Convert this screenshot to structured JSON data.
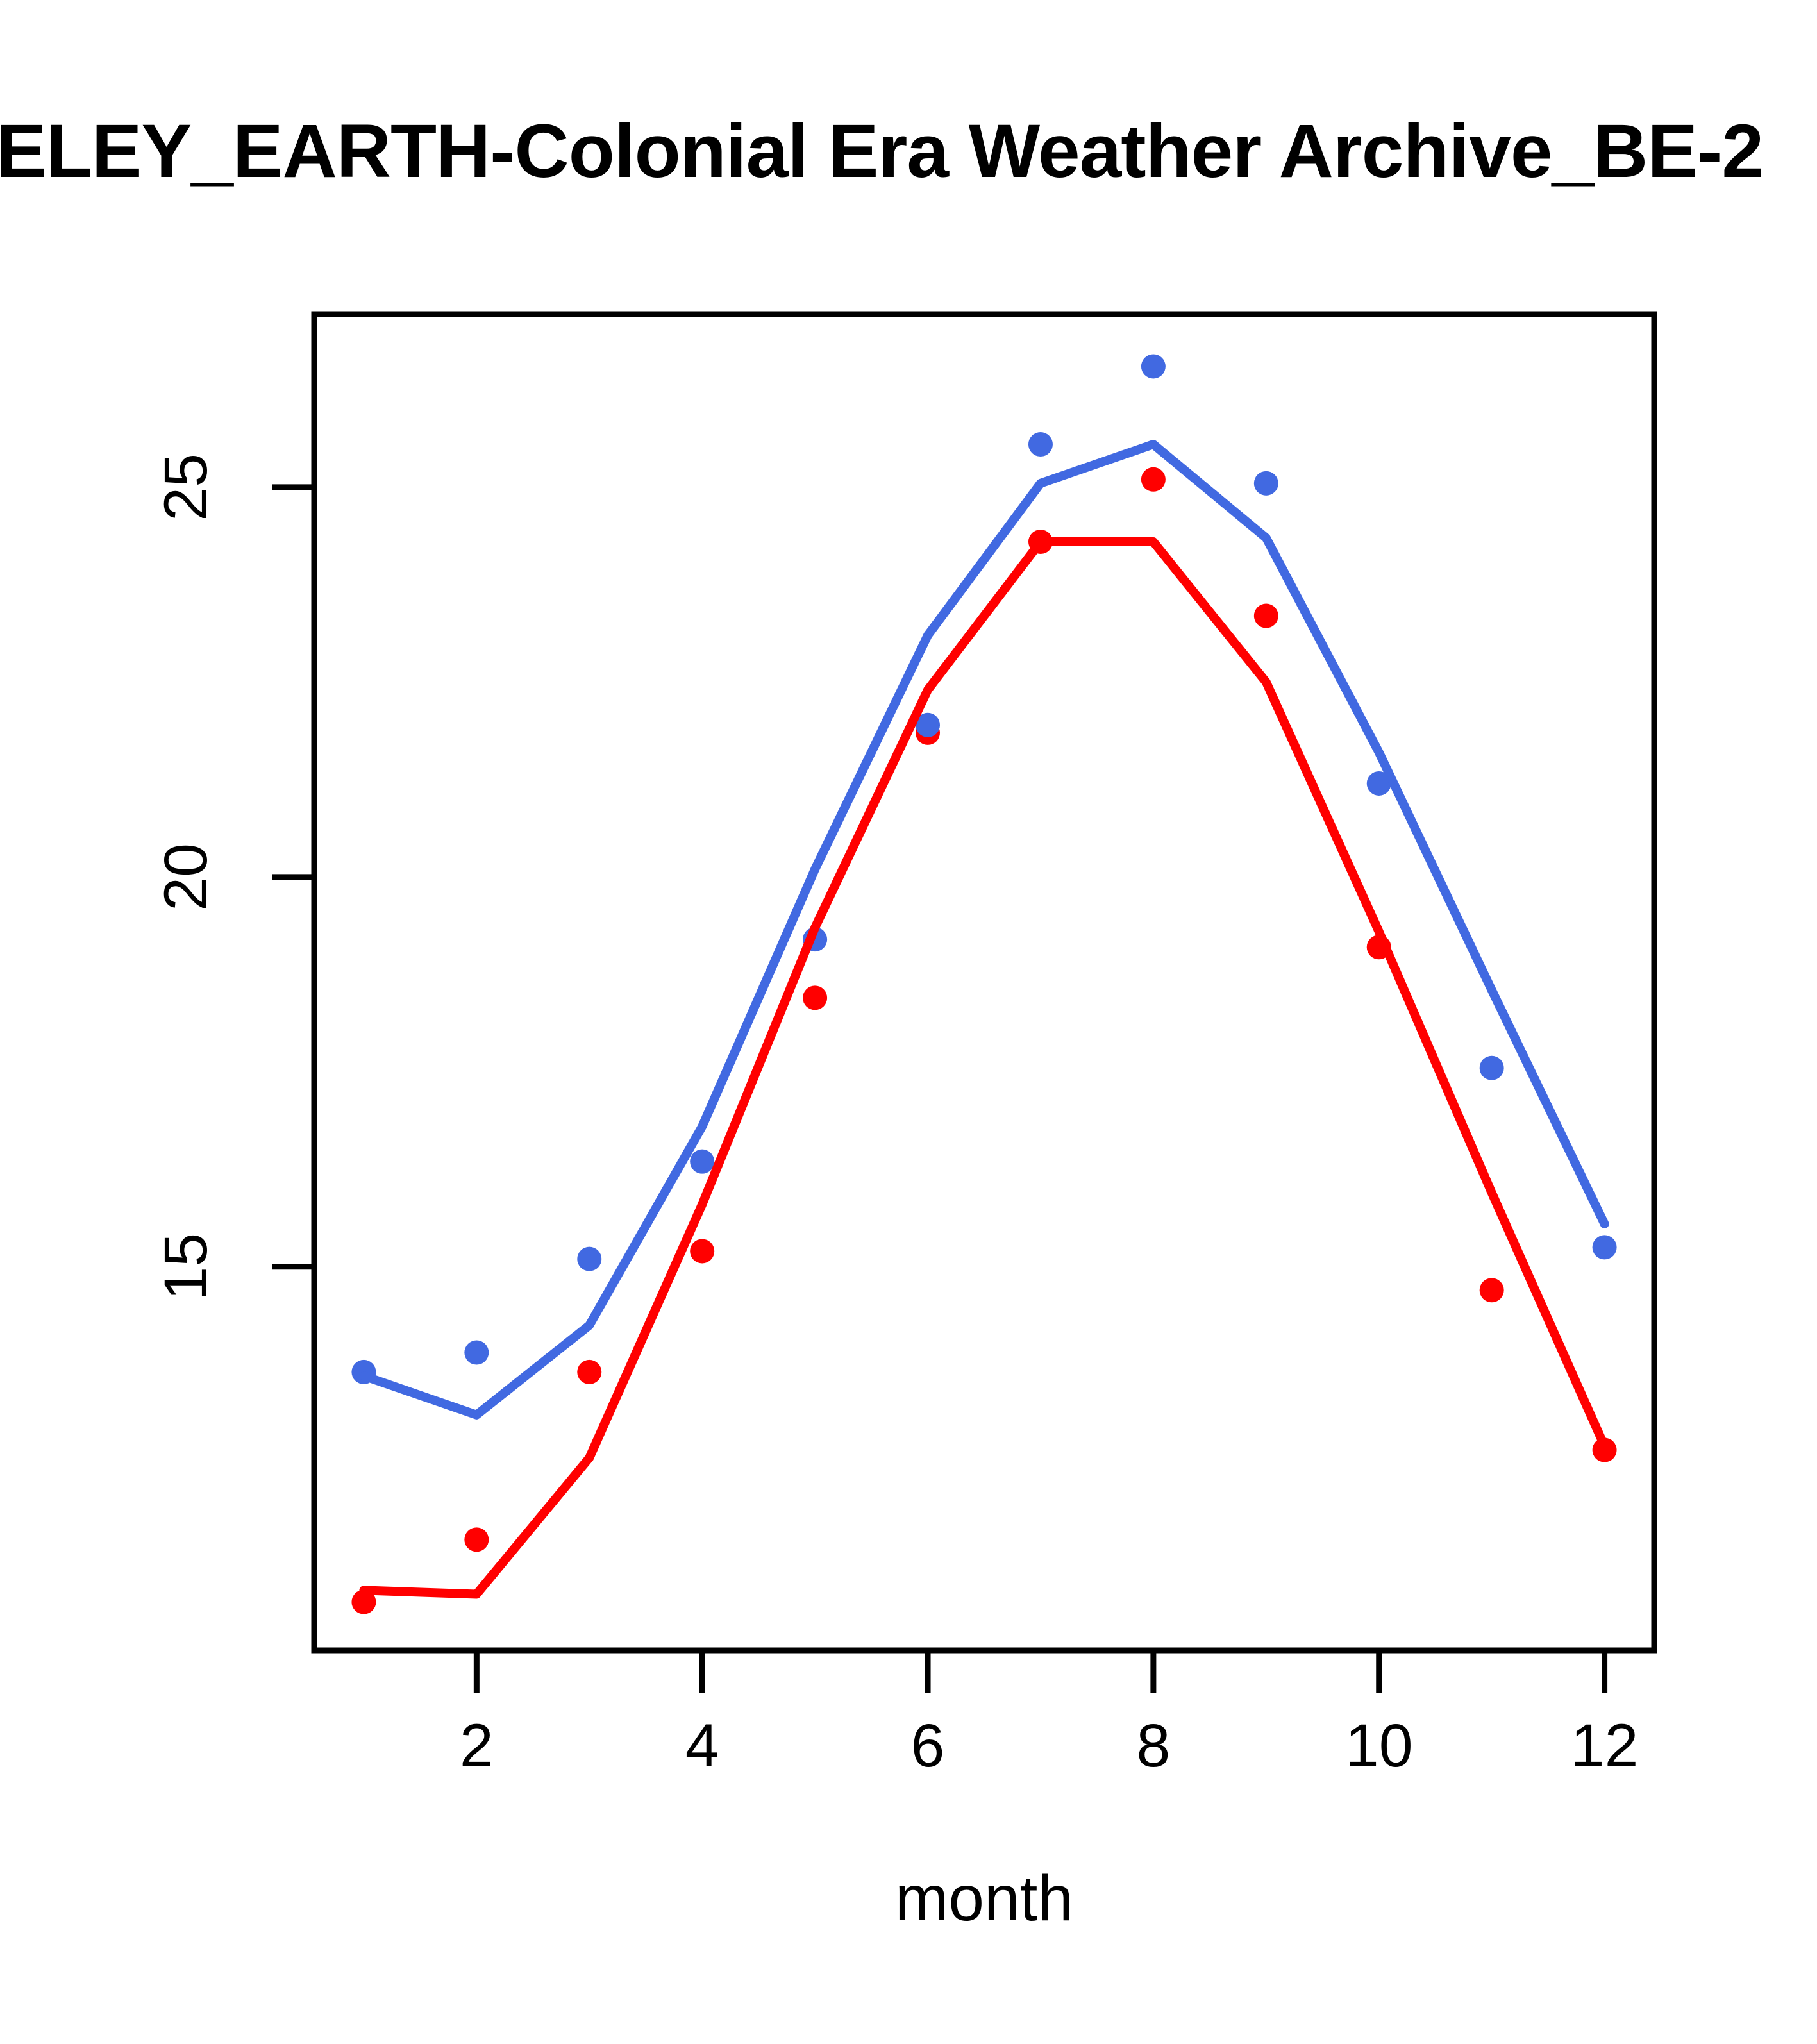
{
  "title": "ELEY_EARTH-Colonial Era Weather Archive_BE-2",
  "axes": {
    "x_label": "month",
    "x_tick_labels": [
      "2",
      "4",
      "6",
      "8",
      "10",
      "12"
    ],
    "y_tick_labels": [
      "15",
      "20",
      "25"
    ]
  },
  "colors": {
    "series_blue": "#4169E1",
    "series_red": "#FF0000",
    "axis": "#000000",
    "background": "#FFFFFF"
  },
  "chart_data": {
    "type": "line",
    "title": "ELEY_EARTH-Colonial Era Weather Archive_BE-2",
    "xlabel": "month",
    "ylabel": "",
    "x": [
      1,
      2,
      3,
      4,
      5,
      6,
      7,
      8,
      9,
      10,
      11,
      12
    ],
    "x_ticks": [
      2,
      4,
      6,
      8,
      10,
      12
    ],
    "y_ticks": [
      15,
      20,
      25
    ],
    "xlim": [
      0.56,
      12.44
    ],
    "ylim": [
      10.08,
      27.22
    ],
    "grid": false,
    "legend": "none",
    "series": [
      {
        "name": "red-points",
        "style": "scatter",
        "color": "#FF0000",
        "values": [
          10.7,
          11.5,
          13.65,
          15.2,
          18.45,
          21.85,
          24.3,
          25.1,
          23.35,
          19.1,
          14.7,
          12.65
        ]
      },
      {
        "name": "blue-points",
        "style": "scatter",
        "color": "#4169E1",
        "values": [
          13.65,
          13.9,
          15.1,
          16.35,
          19.2,
          21.95,
          25.55,
          26.55,
          25.05,
          21.2,
          17.55,
          15.25
        ]
      },
      {
        "name": "red-line",
        "style": "line",
        "color": "#FF0000",
        "values": [
          10.85,
          10.8,
          12.55,
          15.8,
          19.35,
          22.4,
          24.3,
          24.3,
          22.5,
          19.3,
          15.95,
          12.7
        ]
      },
      {
        "name": "blue-line",
        "style": "line",
        "color": "#4169E1",
        "values": [
          13.6,
          13.1,
          14.25,
          16.8,
          20.1,
          23.1,
          25.05,
          25.55,
          24.35,
          21.6,
          18.55,
          15.55
        ]
      }
    ]
  }
}
